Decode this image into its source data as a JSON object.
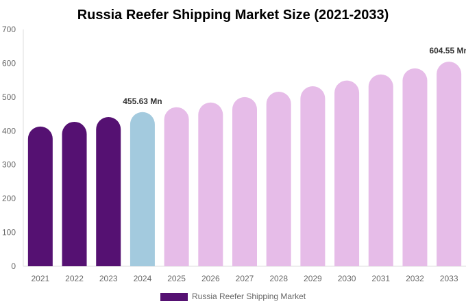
{
  "chart_data": {
    "type": "bar",
    "title": "Russia Reefer Shipping Market Size (2021-2033)",
    "xlabel": "",
    "ylabel": "",
    "ylim": [
      0,
      700
    ],
    "yticks": [
      "0",
      "100",
      "200",
      "300",
      "400",
      "500",
      "600",
      "700"
    ],
    "categories": [
      "2021",
      "2022",
      "2023",
      "2024",
      "2025",
      "2026",
      "2027",
      "2028",
      "2029",
      "2030",
      "2031",
      "2032",
      "2033"
    ],
    "series": [
      {
        "name": "Russia Reefer Shipping Market",
        "values": [
          413,
          427,
          441,
          455.63,
          470,
          484,
          500,
          516,
          532,
          549,
          567,
          585,
          604.55
        ]
      }
    ],
    "bar_colors": [
      "#551172",
      "#551172",
      "#551172",
      "#a3cade",
      "#e6bce8",
      "#e6bce8",
      "#e6bce8",
      "#e6bce8",
      "#e6bce8",
      "#e6bce8",
      "#e6bce8",
      "#e6bce8",
      "#e6bce8"
    ],
    "data_labels": [
      {
        "category": "2024",
        "text": "455.63 Mn"
      },
      {
        "category": "2033",
        "text": "604.55 Mn"
      }
    ],
    "legend": {
      "label": "Russia Reefer Shipping Market",
      "color": "#551172",
      "position": "bottom"
    },
    "grid": false
  }
}
